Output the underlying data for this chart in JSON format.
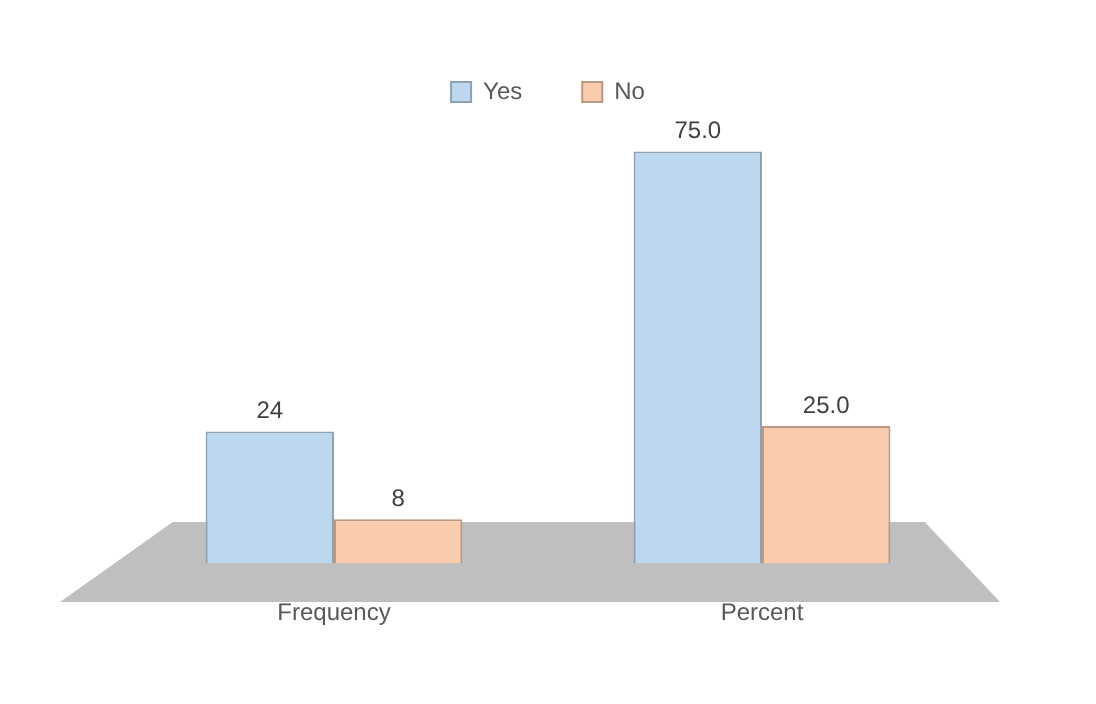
{
  "chart_data": {
    "type": "bar",
    "categories": [
      "Frequency",
      "Percent"
    ],
    "series": [
      {
        "name": "Yes",
        "color": "#bdd7ee",
        "values": [
          24,
          75.0
        ],
        "value_labels": [
          "24",
          "75.0"
        ]
      },
      {
        "name": "No",
        "color": "#f8cbad",
        "values": [
          8,
          25.0
        ],
        "value_labels": [
          "8",
          "25.0"
        ]
      }
    ],
    "legend": "top",
    "grid": false,
    "tick_labels": "x"
  }
}
